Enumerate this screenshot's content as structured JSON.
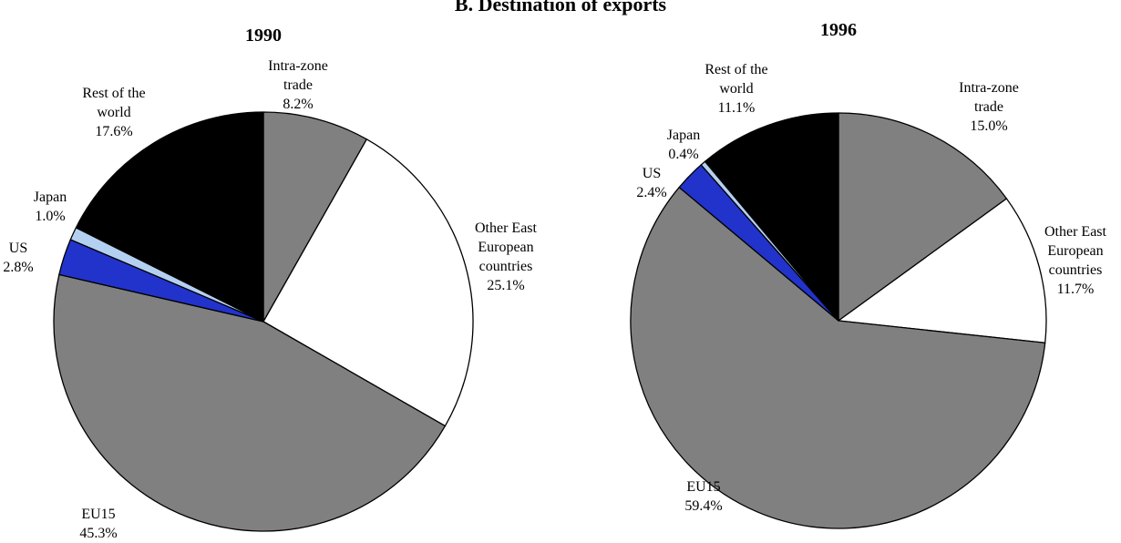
{
  "title": "B.  Destination of exports",
  "chart_data": [
    {
      "type": "pie",
      "title": "1990",
      "categories": [
        "Intra-zone trade",
        "Other East European countries",
        "EU15",
        "US",
        "Japan",
        "Rest of the world"
      ],
      "values": [
        8.2,
        25.1,
        45.3,
        2.8,
        1.0,
        17.6
      ],
      "value_labels": [
        "8.2%",
        "25.1%",
        "45.3%",
        "2.8%",
        "1.0%",
        "17.6%"
      ],
      "colors": [
        "#808080",
        "#ffffff",
        "#808080",
        "#2233cc",
        "#b4d0f0",
        "#000000"
      ]
    },
    {
      "type": "pie",
      "title": "1996",
      "categories": [
        "Intra-zone trade",
        "Other East European countries",
        "EU15",
        "US",
        "Japan",
        "Rest of the world"
      ],
      "values": [
        15.0,
        11.7,
        59.4,
        2.4,
        0.4,
        11.1
      ],
      "value_labels": [
        "15.0%",
        "11.7%",
        "59.4%",
        "2.4%",
        "0.4%",
        "11.1%"
      ],
      "colors": [
        "#808080",
        "#ffffff",
        "#808080",
        "#2233cc",
        "#b4d0f0",
        "#000000"
      ]
    }
  ]
}
